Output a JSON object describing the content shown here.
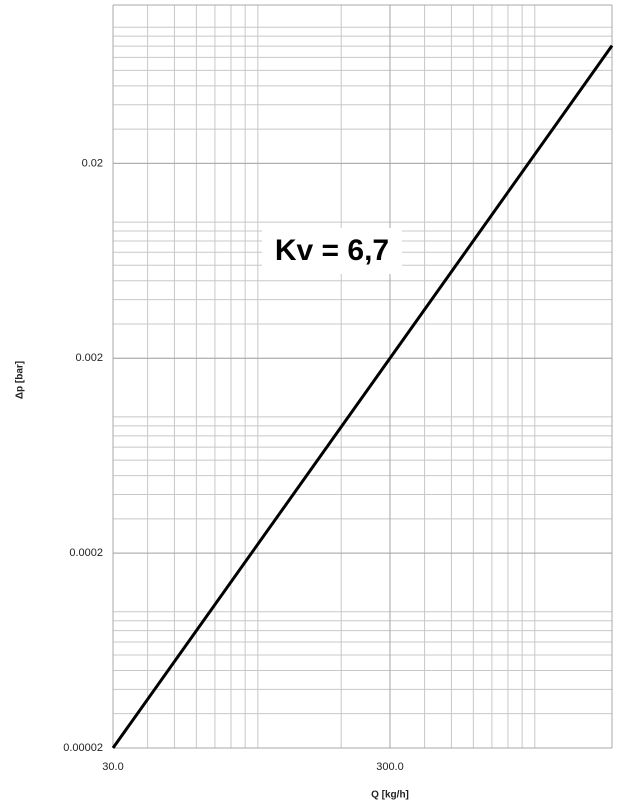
{
  "chart_data": {
    "type": "line",
    "annotation": "Kv = 6,7",
    "x_label": "Q [kg/h]",
    "y_label": "Δp [bar]",
    "x": [
      30,
      300,
      1900
    ],
    "series": [
      {
        "color": "#000000",
        "values": [
          2e-05,
          0.002,
          0.0804
        ]
      }
    ],
    "xlim": [
      30,
      1900
    ],
    "ylim": [
      2e-05,
      0.13
    ],
    "xticks": [
      {
        "value": 30,
        "label": "30.0"
      },
      {
        "value": 300,
        "label": "300.0"
      }
    ],
    "yticks": [
      2e-05,
      0.0002,
      0.002,
      0.02
    ],
    "xscale": "log",
    "yscale": "log",
    "grid": true
  }
}
